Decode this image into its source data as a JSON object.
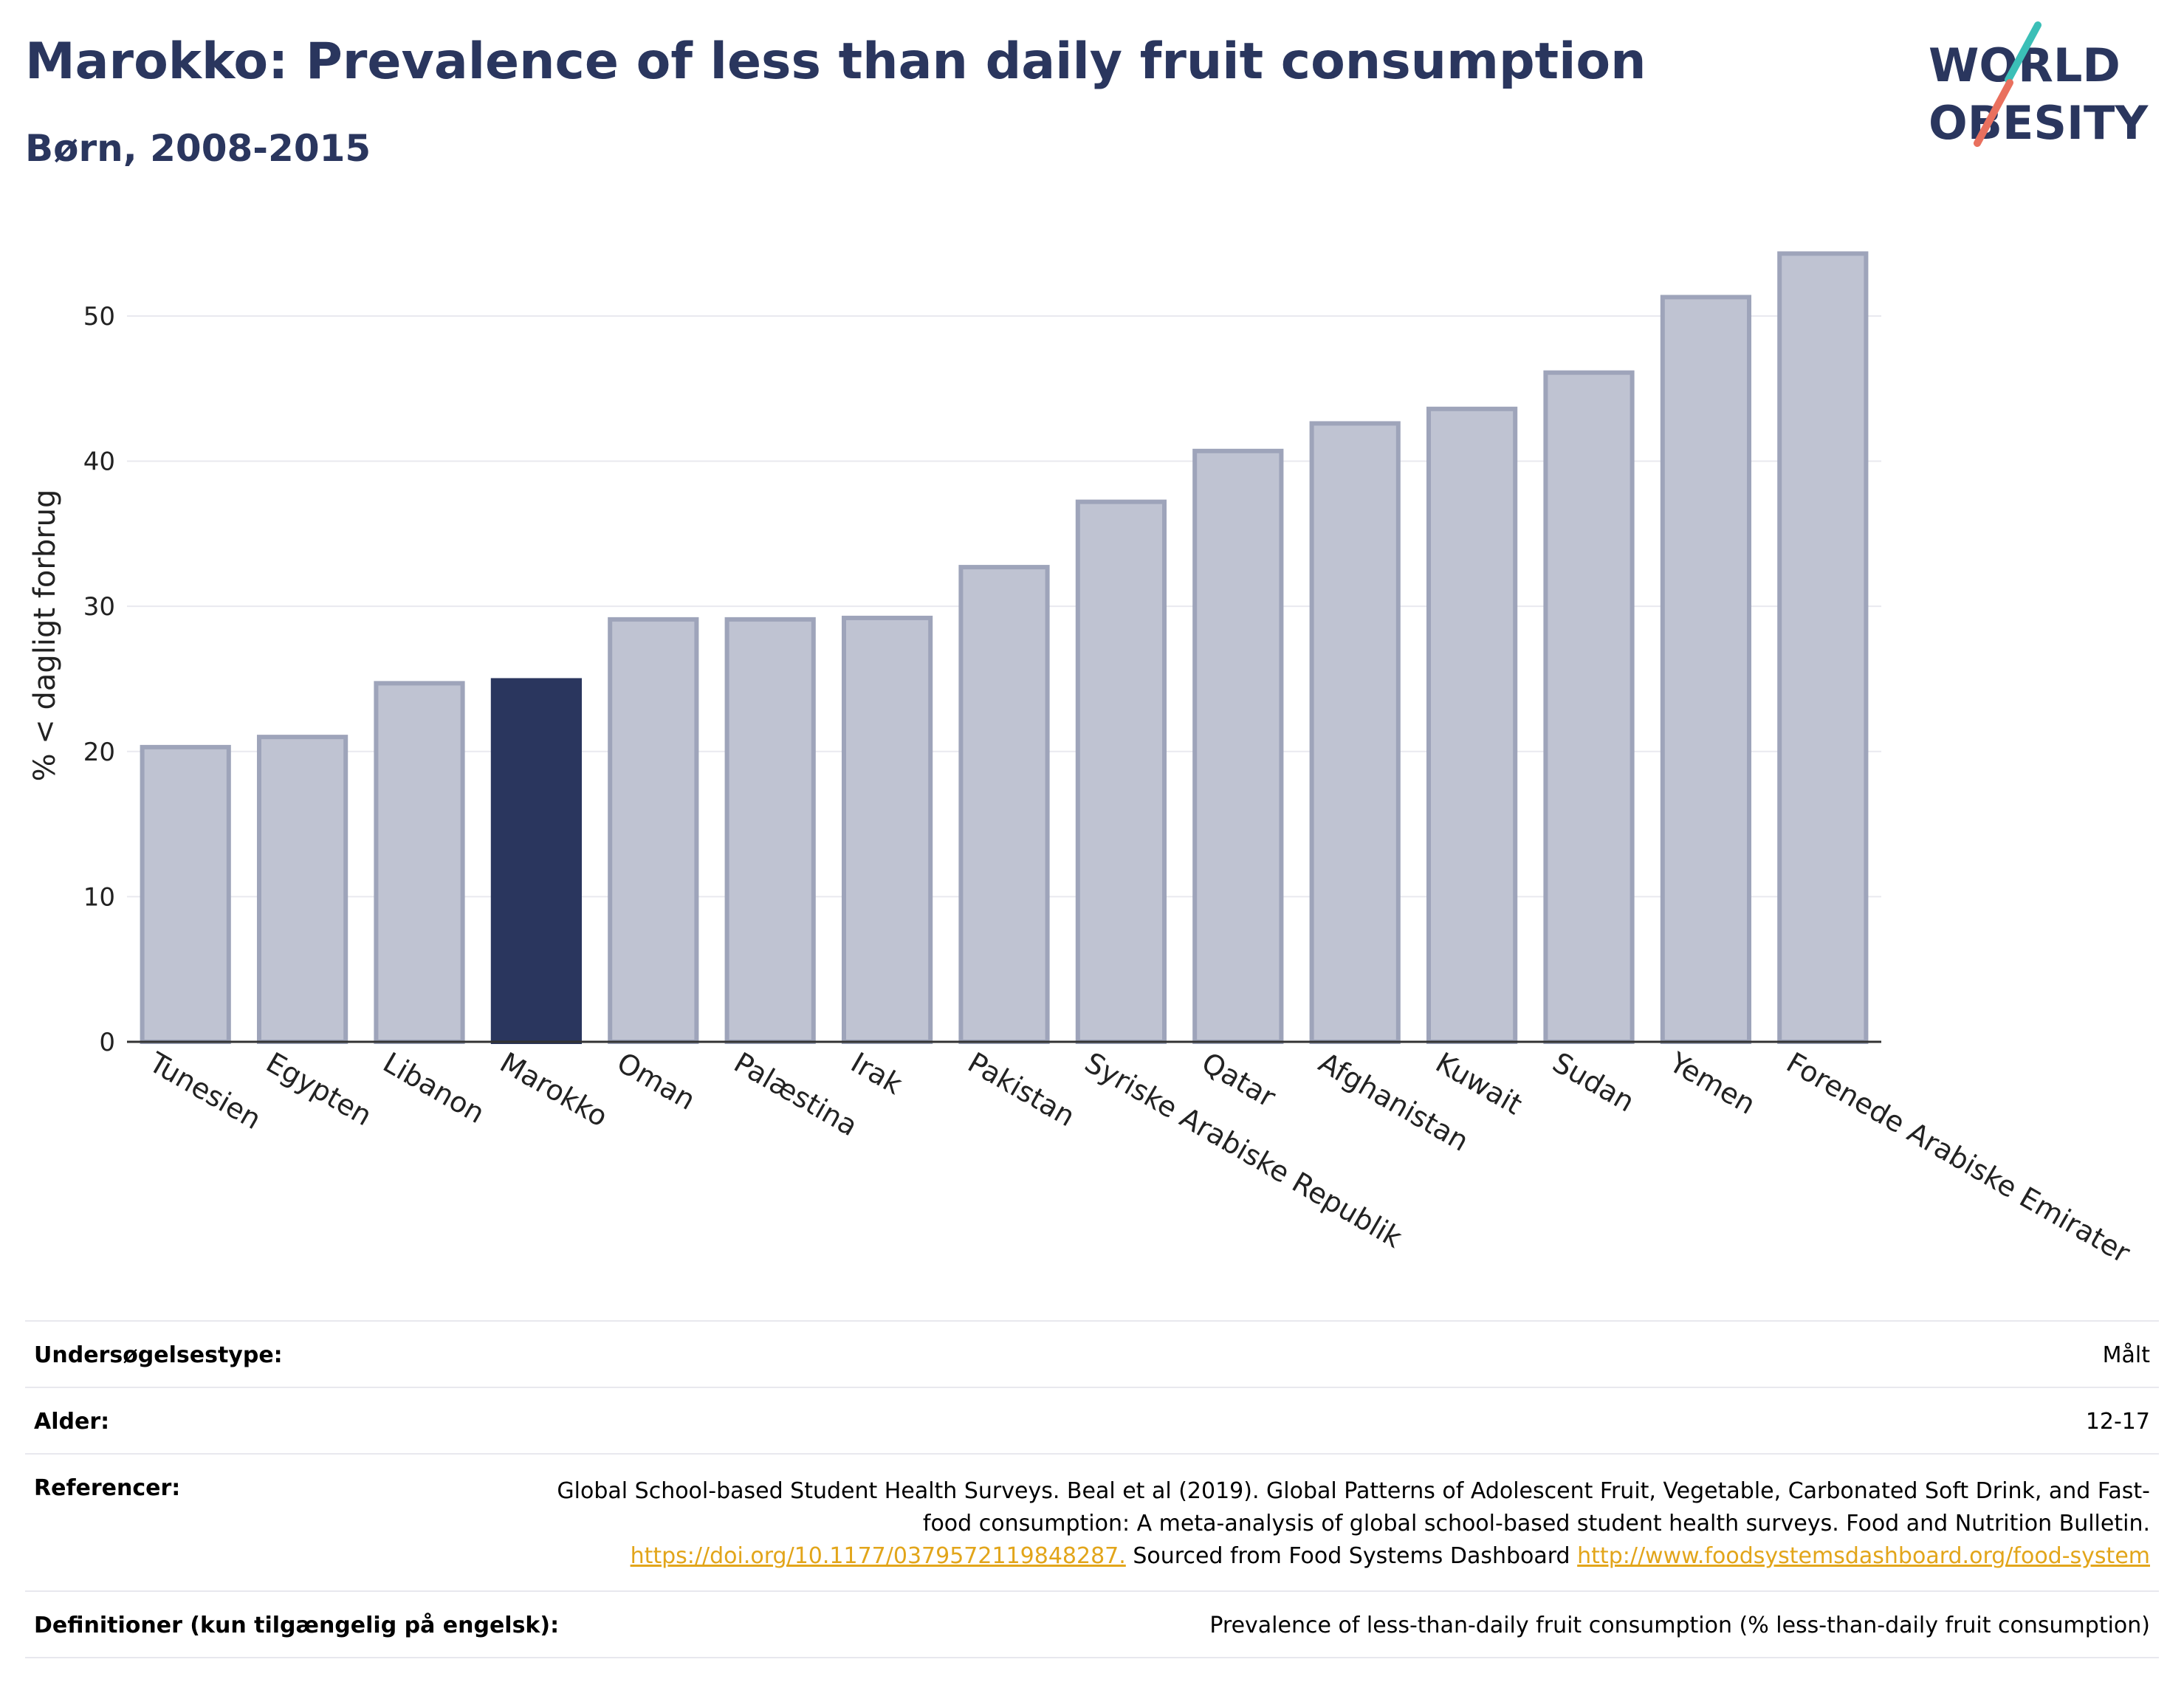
{
  "header": {
    "title": "Marokko: Prevalence of less than daily fruit consumption",
    "subtitle": "Børn, 2008-2015"
  },
  "logo": {
    "line1": "WORLD",
    "line2": "OBESITY",
    "text_color": "#2a365e",
    "accent_teal": "#3bbfb7",
    "accent_coral": "#e9705e"
  },
  "colors": {
    "highlight_bar": "#2a365e",
    "other_bar": "#bfc3d2",
    "other_bar_border": "#9ea4ba",
    "grid": "#e9e9ef",
    "axis": "#333333"
  },
  "chart_data": {
    "type": "bar",
    "title": "Marokko: Prevalence of less than daily fruit consumption",
    "subtitle": "Børn, 2008-2015",
    "xlabel": "",
    "ylabel": "% < dagligt forbrug",
    "ylim": [
      0,
      56
    ],
    "yticks": [
      0,
      10,
      20,
      30,
      40,
      50
    ],
    "grid": true,
    "highlight": "Marokko",
    "categories": [
      "Tunesien",
      "Egypten",
      "Libanon",
      "Marokko",
      "Oman",
      "Palæstina",
      "Irak",
      "Pakistan",
      "Syriske Arabiske Republik",
      "Qatar",
      "Afghanistan",
      "Kuwait",
      "Sudan",
      "Yemen",
      "Forenede Arabiske Emirater"
    ],
    "values": [
      20.3,
      21.0,
      24.7,
      24.9,
      29.1,
      29.1,
      29.2,
      32.7,
      37.2,
      40.7,
      42.6,
      43.6,
      46.1,
      51.3,
      54.3
    ]
  },
  "info": {
    "rows": [
      {
        "label": "Undersøgelsestype:",
        "value": "Målt"
      },
      {
        "label": "Alder:",
        "value": "12-17"
      },
      {
        "label": "Definitioner (kun tilgængelig på engelsk):",
        "value": "Prevalence of less-than-daily fruit consumption (% less-than-daily fruit consumption)"
      }
    ],
    "references": {
      "label": "Referencer:",
      "text1": "Global School-based Student Health Surveys. Beal et al (2019). Global Patterns of Adolescent Fruit, Vegetable, Carbonated Soft Drink, and Fast-food consumption: A meta-analysis of global school-based student health surveys. Food and Nutrition Bulletin.",
      "link1": "https://doi.org/10.1177/0379572119848287.",
      "text2": "Sourced from Food Systems Dashboard",
      "link2": "http://www.foodsystemsdashboard.org/food-system"
    }
  }
}
